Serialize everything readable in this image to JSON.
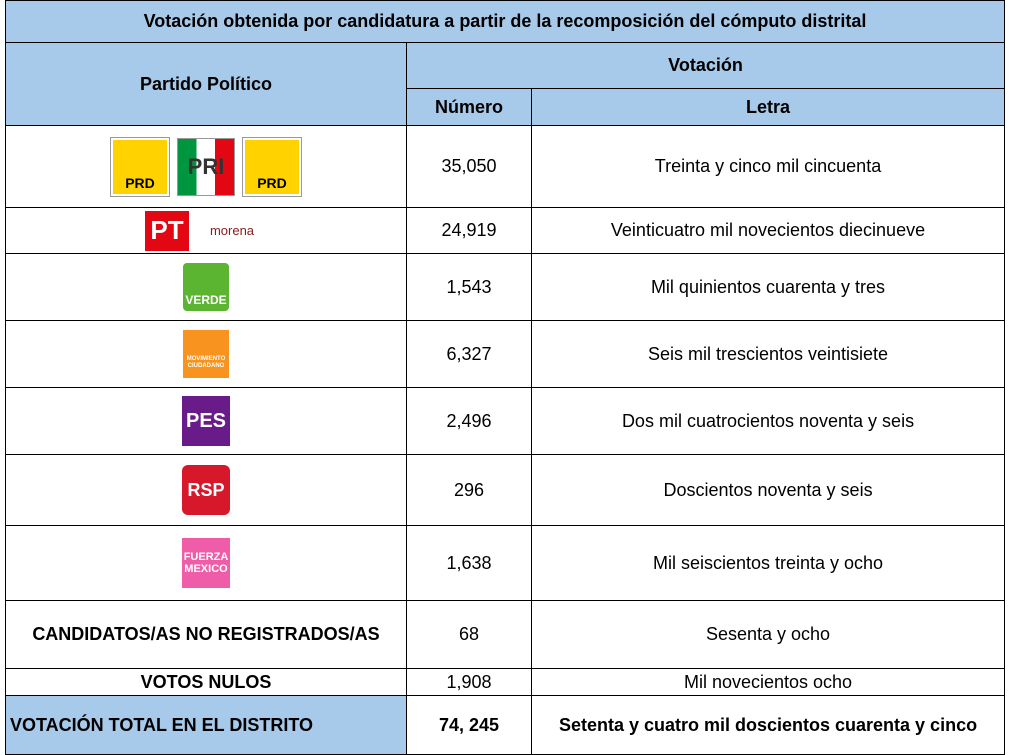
{
  "table": {
    "title": "Votación obtenida por candidatura a partir de la recomposición del cómputo distrital",
    "headers": {
      "partido": "Partido Político",
      "votacion": "Votación",
      "numero": "Número",
      "letra": "Letra"
    },
    "rows": [
      {
        "logos": [
          {
            "label": "PRD",
            "kind": "prd"
          },
          {
            "label": "PRI",
            "kind": "pri"
          },
          {
            "label": "PRD",
            "kind": "prd"
          }
        ],
        "numero": "35,050",
        "letra": "Treinta y cinco mil cincuenta"
      },
      {
        "logos": [
          {
            "label": "PT",
            "kind": "pt"
          },
          {
            "label": "morena",
            "kind": "morena"
          }
        ],
        "numero": "24,919",
        "letra": "Veinticuatro mil novecientos diecinueve"
      },
      {
        "logos": [
          {
            "label": "VERDE",
            "kind": "verde"
          }
        ],
        "numero": "1,543",
        "letra": "Mil quinientos cuarenta y tres"
      },
      {
        "logos": [
          {
            "label": "MOVIMIENTO CIUDADANO",
            "kind": "mc"
          }
        ],
        "numero": "6,327",
        "letra": "Seis mil trescientos veintisiete"
      },
      {
        "logos": [
          {
            "label": "PES",
            "kind": "pes"
          }
        ],
        "numero": "2,496",
        "letra": "Dos mil cuatrocientos noventa y seis"
      },
      {
        "logos": [
          {
            "label": "RSP",
            "kind": "rsp"
          }
        ],
        "numero": "296",
        "letra": "Doscientos noventa y seis"
      },
      {
        "logos": [
          {
            "label": "FUERZA MEXICO",
            "kind": "fm"
          }
        ],
        "numero": "1,638",
        "letra": "Mil seiscientos treinta y ocho"
      },
      {
        "partido": "CANDIDATOS/AS NO REGISTRADOS/AS",
        "numero": "68",
        "letra": "Sesenta y ocho"
      },
      {
        "partido": "VOTOS NULOS",
        "numero": "1,908",
        "letra": "Mil novecientos ocho"
      }
    ],
    "total": {
      "partido": "VOTACIÓN TOTAL EN EL DISTRITO",
      "numero": "74, 245",
      "letra": "Setenta y cuatro mil doscientos cuarenta y cinco"
    }
  }
}
